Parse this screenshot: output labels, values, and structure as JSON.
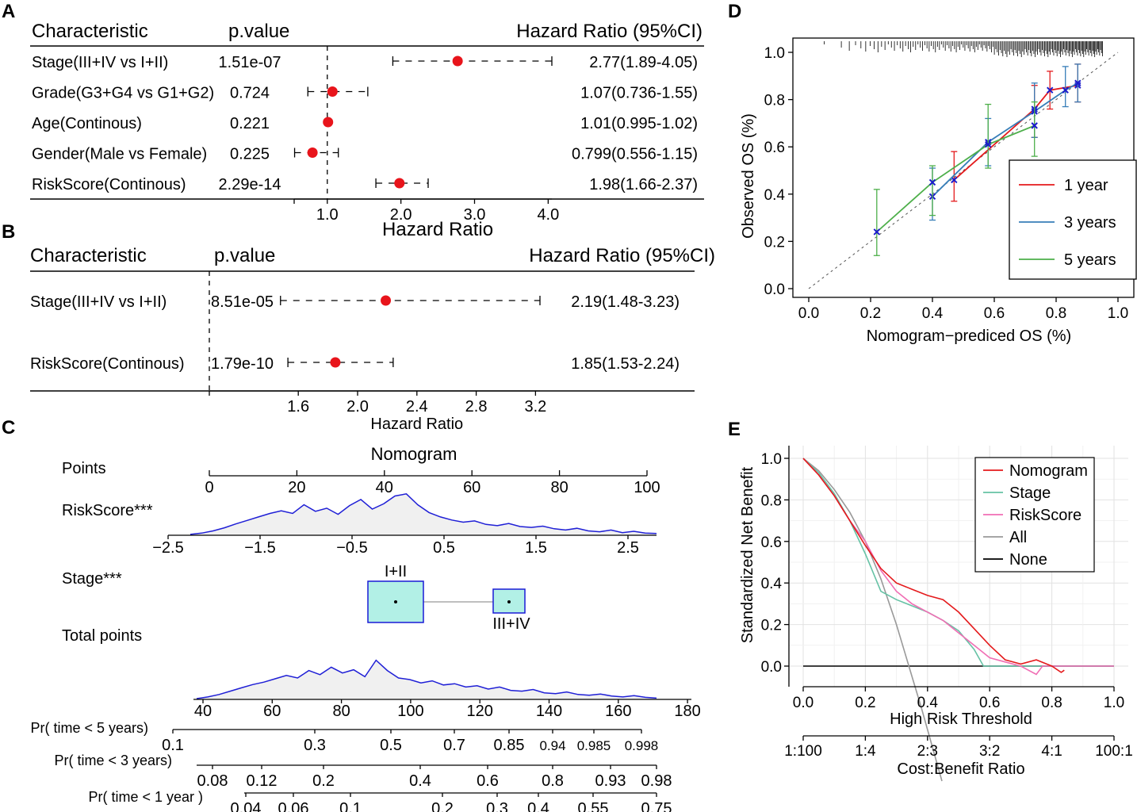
{
  "panel_labels": {
    "a": "A",
    "b": "B",
    "c": "C",
    "d": "D",
    "e": "E"
  },
  "colors": {
    "point": "#e8141b",
    "red": "#e41a1c",
    "blue": "#377eb8",
    "green": "#4daf4a",
    "teal": "#66c2a5",
    "pink": "#f06eb4",
    "gray": "#999999",
    "black": "#000000",
    "density_line": "#1f1fd6",
    "density_fill": "#f0f0f0",
    "box_fill": "#b2f0e6",
    "box_stroke": "#1a1ad6"
  },
  "chart_data": [
    {
      "id": "A",
      "type": "forest",
      "headers": {
        "characteristic": "Characteristic",
        "pvalue": "p.value",
        "hr": "Hazard Ratio (95%CI)"
      },
      "xlabel": "Hazard Ratio",
      "ticks": [
        1,
        2,
        3,
        4
      ],
      "tick_labels": [
        "1.0",
        "2.0",
        "3.0",
        "4.0"
      ],
      "xlim": [
        0.55,
        4.05
      ],
      "ref": 1,
      "rows": [
        {
          "label": "Stage(III+IV vs I+II)",
          "p": "1.51e-07",
          "hr_text": "2.77(1.89-4.05)",
          "hr": 2.77,
          "lo": 1.89,
          "hi": 4.05
        },
        {
          "label": "Grade(G3+G4 vs G1+G2)",
          "p": "0.724",
          "hr_text": "1.07(0.736-1.55)",
          "hr": 1.07,
          "lo": 0.736,
          "hi": 1.55
        },
        {
          "label": "Age(Continous)",
          "p": "0.221",
          "hr_text": "1.01(0.995-1.02)",
          "hr": 1.01,
          "lo": 0.995,
          "hi": 1.02
        },
        {
          "label": "Gender(Male vs Female)",
          "p": "0.225",
          "hr_text": "0.799(0.556-1.15)",
          "hr": 0.799,
          "lo": 0.556,
          "hi": 1.15
        },
        {
          "label": "RiskScore(Continous)",
          "p": "2.29e-14",
          "hr_text": "1.98(1.66-2.37)",
          "hr": 1.98,
          "lo": 1.66,
          "hi": 2.37
        }
      ]
    },
    {
      "id": "B",
      "type": "forest",
      "headers": {
        "characteristic": "Characteristic",
        "pvalue": "p.value",
        "hr": "Hazard Ratio (95%CI)"
      },
      "xlabel": "Hazard Ratio",
      "ticks": [
        1.6,
        2.0,
        2.4,
        2.8,
        3.2
      ],
      "tick_labels": [
        "1.6",
        "2.0",
        "2.4",
        "2.8",
        "3.2"
      ],
      "xlim": [
        1.0,
        3.23
      ],
      "ref": 1,
      "rows": [
        {
          "label": "Stage(III+IV vs I+II)",
          "p": "8.51e-05",
          "hr_text": "2.19(1.48-3.23)",
          "hr": 2.19,
          "lo": 1.48,
          "hi": 3.23
        },
        {
          "label": "RiskScore(Continous)",
          "p": "1.79e-10",
          "hr_text": "1.85(1.53-2.24)",
          "hr": 1.85,
          "lo": 1.53,
          "hi": 2.24
        }
      ]
    },
    {
      "id": "C",
      "type": "nomogram",
      "title": "Nomogram",
      "rows": [
        {
          "label": "Points",
          "ticks": [
            "0",
            "20",
            "40",
            "60",
            "80",
            "100"
          ]
        },
        {
          "label": "RiskScore***",
          "ticks": [
            "−2.5",
            "−1.5",
            "−0.5",
            "0.5",
            "1.5",
            "2.5"
          ]
        },
        {
          "label": "Stage***",
          "levels": [
            "I+II",
            "III+IV"
          ],
          "box_sizes": [
            0.65,
            0.35
          ]
        },
        {
          "label": "Total points",
          "ticks": [
            "40",
            "60",
            "80",
            "100",
            "120",
            "140",
            "160",
            "180"
          ]
        },
        {
          "label": "Pr( time < 5 years)",
          "ticks": [
            "0.1",
            "0.3",
            "0.5",
            "0.7",
            "0.85",
            "0.94",
            "0.985",
            "0.998"
          ]
        },
        {
          "label": "Pr( time < 3 years)",
          "ticks": [
            "0.08",
            "0.12",
            "0.2",
            "0.4",
            "0.6",
            "0.8",
            "0.93",
            "0.98"
          ]
        },
        {
          "label": "Pr( time < 1 year )",
          "ticks": [
            "0.04",
            "0.06",
            "0.1",
            "0.2",
            "0.3",
            "0.4",
            "0.55",
            "0.75"
          ]
        }
      ],
      "risk_density": [
        0.02,
        0.05,
        0.1,
        0.17,
        0.26,
        0.34,
        0.42,
        0.5,
        0.56,
        0.5,
        0.7,
        0.55,
        0.62,
        0.48,
        0.68,
        0.82,
        0.6,
        0.72,
        0.9,
        0.95,
        0.7,
        0.52,
        0.42,
        0.35,
        0.3,
        0.33,
        0.25,
        0.22,
        0.27,
        0.2,
        0.18,
        0.21,
        0.15,
        0.12,
        0.16,
        0.1,
        0.08,
        0.12,
        0.06,
        0.09,
        0.05,
        0.04
      ],
      "total_density": [
        0.02,
        0.06,
        0.12,
        0.2,
        0.28,
        0.36,
        0.42,
        0.5,
        0.58,
        0.52,
        0.7,
        0.6,
        0.78,
        0.64,
        0.72,
        0.55,
        0.95,
        0.7,
        0.52,
        0.48,
        0.4,
        0.45,
        0.35,
        0.38,
        0.3,
        0.33,
        0.25,
        0.3,
        0.22,
        0.2,
        0.24,
        0.16,
        0.14,
        0.18,
        0.12,
        0.1,
        0.13,
        0.08,
        0.06,
        0.09,
        0.05,
        0.03
      ]
    },
    {
      "id": "D",
      "type": "calibration",
      "xlabel": "Nomogram−prediced OS (%)",
      "ylabel": "Observed OS (%)",
      "xlim": [
        0,
        1
      ],
      "ylim": [
        0,
        1
      ],
      "xticks": [
        "0.0",
        "0.2",
        "0.4",
        "0.6",
        "0.8",
        "1.0"
      ],
      "yticks": [
        "0.0",
        "0.2",
        "0.4",
        "0.6",
        "0.8",
        "1.0"
      ],
      "legend": [
        "1 year",
        "3 years",
        "5 years"
      ],
      "series": [
        {
          "name": "1 year",
          "x": [
            0.47,
            0.73,
            0.78,
            0.87
          ],
          "y": [
            0.46,
            0.76,
            0.84,
            0.86
          ],
          "lo": [
            0.37,
            0.64,
            0.76,
            0.79
          ],
          "hi": [
            0.58,
            0.86,
            0.92,
            0.95
          ]
        },
        {
          "name": "3 years",
          "x": [
            0.4,
            0.58,
            0.73,
            0.83,
            0.87
          ],
          "y": [
            0.39,
            0.62,
            0.75,
            0.84,
            0.87
          ],
          "lo": [
            0.29,
            0.52,
            0.64,
            0.77,
            0.79
          ],
          "hi": [
            0.51,
            0.72,
            0.87,
            0.94,
            0.95
          ]
        },
        {
          "name": "5 years",
          "x": [
            0.22,
            0.4,
            0.58,
            0.73
          ],
          "y": [
            0.24,
            0.45,
            0.61,
            0.69
          ],
          "lo": [
            0.14,
            0.31,
            0.51,
            0.56
          ],
          "hi": [
            0.42,
            0.52,
            0.78,
            0.79
          ]
        }
      ]
    },
    {
      "id": "E",
      "type": "decision_curve",
      "xlabel": "High Risk Threshold",
      "ylabel": "Standardized Net Benefit",
      "x2label": "Cost:Benefit Ratio",
      "xlim": [
        0,
        1
      ],
      "ylim": [
        -0.05,
        1.0
      ],
      "xticks": [
        "0.0",
        "0.2",
        "0.4",
        "0.6",
        "0.8",
        "1.0"
      ],
      "yticks": [
        "0.0",
        "0.2",
        "0.4",
        "0.6",
        "0.8",
        "1.0"
      ],
      "x2ticks": [
        "1:100",
        "1:4",
        "2:3",
        "3:2",
        "4:1",
        "100:1"
      ],
      "legend": [
        "Nomogram",
        "Stage",
        "RiskScore",
        "All",
        "None"
      ],
      "series": [
        {
          "name": "Nomogram",
          "x": [
            0,
            0.05,
            0.1,
            0.15,
            0.2,
            0.25,
            0.3,
            0.35,
            0.4,
            0.45,
            0.5,
            0.55,
            0.6,
            0.65,
            0.7,
            0.75,
            0.8,
            0.83,
            0.84
          ],
          "y": [
            1.0,
            0.92,
            0.82,
            0.7,
            0.58,
            0.47,
            0.4,
            0.37,
            0.34,
            0.32,
            0.26,
            0.18,
            0.1,
            0.03,
            0.01,
            0.03,
            0.0,
            -0.03,
            -0.02
          ]
        },
        {
          "name": "Stage",
          "x": [
            0,
            0.05,
            0.1,
            0.15,
            0.2,
            0.25,
            0.3,
            0.35,
            0.4,
            0.45,
            0.5,
            0.55,
            0.58,
            1.0
          ],
          "y": [
            1.0,
            0.93,
            0.83,
            0.7,
            0.54,
            0.36,
            0.32,
            0.29,
            0.26,
            0.22,
            0.17,
            0.08,
            0.0,
            0.0
          ]
        },
        {
          "name": "RiskScore",
          "x": [
            0,
            0.05,
            0.1,
            0.15,
            0.2,
            0.25,
            0.3,
            0.35,
            0.4,
            0.45,
            0.5,
            0.55,
            0.6,
            0.65,
            0.7,
            0.75,
            0.77,
            1.0
          ],
          "y": [
            1.0,
            0.92,
            0.82,
            0.7,
            0.6,
            0.46,
            0.36,
            0.3,
            0.26,
            0.22,
            0.16,
            0.1,
            0.04,
            0.02,
            0.0,
            -0.04,
            0.0,
            0.0
          ]
        },
        {
          "name": "All",
          "x": [
            0,
            0.05,
            0.1,
            0.15,
            0.2,
            0.25,
            0.3,
            0.35,
            0.38
          ],
          "y": [
            1.0,
            0.94,
            0.85,
            0.74,
            0.6,
            0.42,
            0.2,
            -0.05,
            -0.2
          ]
        },
        {
          "name": "None",
          "x": [
            0,
            1
          ],
          "y": [
            0,
            0
          ]
        }
      ]
    }
  ]
}
